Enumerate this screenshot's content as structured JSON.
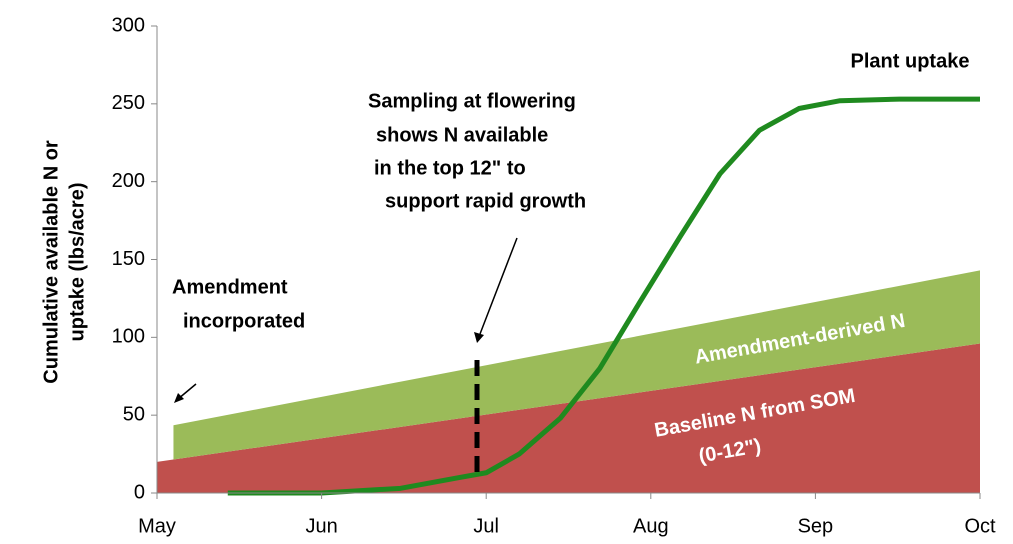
{
  "chart_data": {
    "type": "area-line",
    "y_label_lines": [
      "Cumulative available N or",
      "uptake (lbs/acre)"
    ],
    "xlim": [
      0,
      5
    ],
    "xticks": [
      {
        "value": 0,
        "label": "May"
      },
      {
        "value": 1,
        "label": "Jun"
      },
      {
        "value": 2,
        "label": "Jul"
      },
      {
        "value": 3,
        "label": "Aug"
      },
      {
        "value": 4,
        "label": "Sep"
      },
      {
        "value": 5,
        "label": "Oct"
      }
    ],
    "ylim": [
      0,
      300
    ],
    "yticks": [
      0,
      50,
      100,
      150,
      200,
      250,
      300
    ],
    "series": [
      {
        "name": "Baseline N from SOM",
        "kind": "area",
        "color": "#c0504d",
        "x": [
          0,
          0.1,
          5
        ],
        "values": [
          20,
          21.5,
          96
        ]
      },
      {
        "name": "Amendment-derived N",
        "kind": "area",
        "color": "#9bbb59",
        "x": [
          0,
          0.1,
          5
        ],
        "values": [
          null,
          22,
          47
        ]
      },
      {
        "name": "Plant uptake",
        "kind": "line",
        "color": "#1f8a1f",
        "x": [
          0.43,
          1,
          1.48,
          1.84,
          2,
          2.2,
          2.45,
          2.69,
          2.93,
          3.18,
          3.42,
          3.66,
          3.9,
          4.15,
          4.51,
          5
        ],
        "values": [
          0,
          0,
          3,
          10,
          13,
          25,
          48,
          80,
          122,
          165,
          205,
          233,
          247,
          252,
          253,
          253
        ]
      }
    ],
    "annotations": {
      "baseline_sub": "(0-12\")",
      "amendment": [
        "Amendment",
        "incorporated"
      ],
      "sampling": [
        "Sampling at flowering",
        "shows N available",
        "in the top 12\"  to",
        "support rapid growth"
      ]
    }
  }
}
